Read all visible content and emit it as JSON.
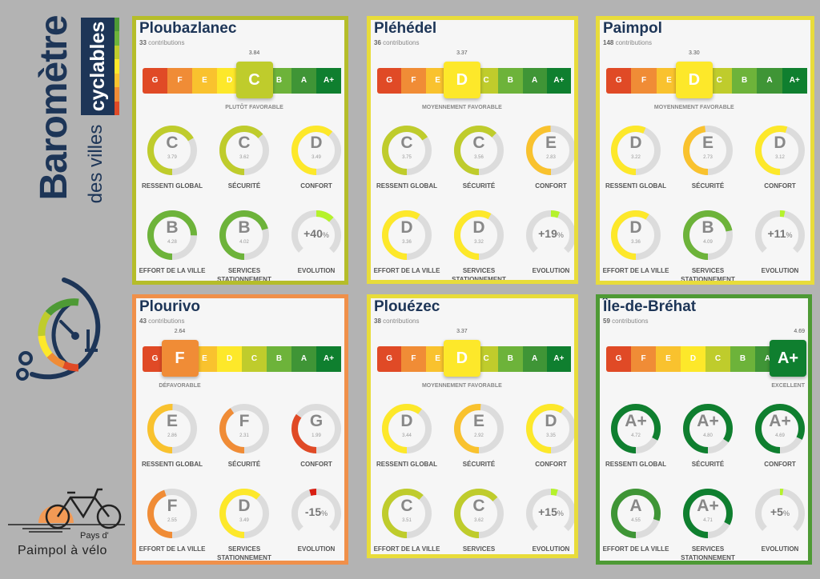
{
  "branding": {
    "title": "Baromètre",
    "subtitle": "des villes",
    "tag": "cyclables",
    "partner_line1": "Pays d'",
    "partner_line2": "Paimpol à vélo"
  },
  "contributions_label": "contributions",
  "grades": [
    "G",
    "F",
    "E",
    "D",
    "C",
    "B",
    "A",
    "A+"
  ],
  "grade_colors": {
    "G": "#e04a26",
    "F": "#f08c36",
    "E": "#f9c22e",
    "D": "#fde82a",
    "C": "#bfcc2c",
    "B": "#6db33a",
    "A": "#3f9536",
    "A+": "#0f7f2f"
  },
  "evolution_colors": {
    "positive": "#b5f22c",
    "negative": "#d81e12"
  },
  "metric_labels": [
    "RESSENTI GLOBAL",
    "SÉCURITÉ",
    "CONFORT",
    "EFFORT DE LA VILLE",
    "SERVICES STATIONNEMENT",
    "EVOLUTION"
  ],
  "cards": [
    {
      "name": "Ploubazlanec",
      "contributions": "33",
      "score": "3.84",
      "grade": "C",
      "verdict": "PLUTÔT FAVORABLE",
      "border": "#b5bd2a",
      "metrics": [
        {
          "grade": "C",
          "score": "3.79"
        },
        {
          "grade": "C",
          "score": "3.62"
        },
        {
          "grade": "D",
          "score": "3.49"
        },
        {
          "grade": "B",
          "score": "4.28"
        },
        {
          "grade": "B",
          "score": "4.02"
        }
      ],
      "evolution": {
        "value": 40,
        "text": "+40",
        "unit": "%"
      }
    },
    {
      "name": "Pléhédel",
      "contributions": "36",
      "score": "3.37",
      "grade": "D",
      "verdict": "MOYENNEMENT FAVORABLE",
      "border": "#e8dc3a",
      "metrics": [
        {
          "grade": "C",
          "score": "3.75"
        },
        {
          "grade": "C",
          "score": "3.56"
        },
        {
          "grade": "E",
          "score": "2.83"
        },
        {
          "grade": "D",
          "score": "3.36"
        },
        {
          "grade": "D",
          "score": "3.32"
        }
      ],
      "evolution": {
        "value": 19,
        "text": "+19",
        "unit": "%"
      }
    },
    {
      "name": "Paimpol",
      "contributions": "148",
      "score": "3.30",
      "grade": "D",
      "verdict": "MOYENNEMENT FAVORABLE",
      "border": "#e8dc3a",
      "metrics": [
        {
          "grade": "D",
          "score": "3.22"
        },
        {
          "grade": "E",
          "score": "2.73"
        },
        {
          "grade": "D",
          "score": "3.12"
        },
        {
          "grade": "D",
          "score": "3.36"
        },
        {
          "grade": "B",
          "score": "4.09"
        }
      ],
      "evolution": {
        "value": 11,
        "text": "+11",
        "unit": "%"
      }
    },
    {
      "name": "Plourivo",
      "contributions": "43",
      "score": "2.64",
      "grade": "F",
      "verdict": "DÉFAVORABLE",
      "border": "#f0904a",
      "metrics": [
        {
          "grade": "E",
          "score": "2.86"
        },
        {
          "grade": "F",
          "score": "2.31"
        },
        {
          "grade": "G",
          "score": "1.99"
        },
        {
          "grade": "F",
          "score": "2.55"
        },
        {
          "grade": "D",
          "score": "3.49"
        }
      ],
      "evolution": {
        "value": -15,
        "text": "-15",
        "unit": "%"
      }
    },
    {
      "name": "Plouézec",
      "contributions": "38",
      "score": "3.37",
      "grade": "D",
      "verdict": "MOYENNEMENT FAVORABLE",
      "border": "#e8dc3a",
      "metrics": [
        {
          "grade": "D",
          "score": "3.44"
        },
        {
          "grade": "E",
          "score": "2.92"
        },
        {
          "grade": "D",
          "score": "3.35"
        },
        {
          "grade": "C",
          "score": "3.51"
        },
        {
          "grade": "C",
          "score": "3.62"
        }
      ],
      "evolution": {
        "value": 15,
        "text": "+15",
        "unit": "%"
      }
    },
    {
      "name": "Île-de-Bréhat",
      "contributions": "59",
      "score": "4.69",
      "grade": "A+",
      "verdict": "EXCELLENT",
      "border": "#4e9a35",
      "metrics": [
        {
          "grade": "A+",
          "score": "4.72"
        },
        {
          "grade": "A+",
          "score": "4.80"
        },
        {
          "grade": "A+",
          "score": "4.69"
        },
        {
          "grade": "A",
          "score": "4.55"
        },
        {
          "grade": "A+",
          "score": "4.71"
        }
      ],
      "evolution": {
        "value": 5,
        "text": "+5",
        "unit": "%"
      }
    }
  ]
}
